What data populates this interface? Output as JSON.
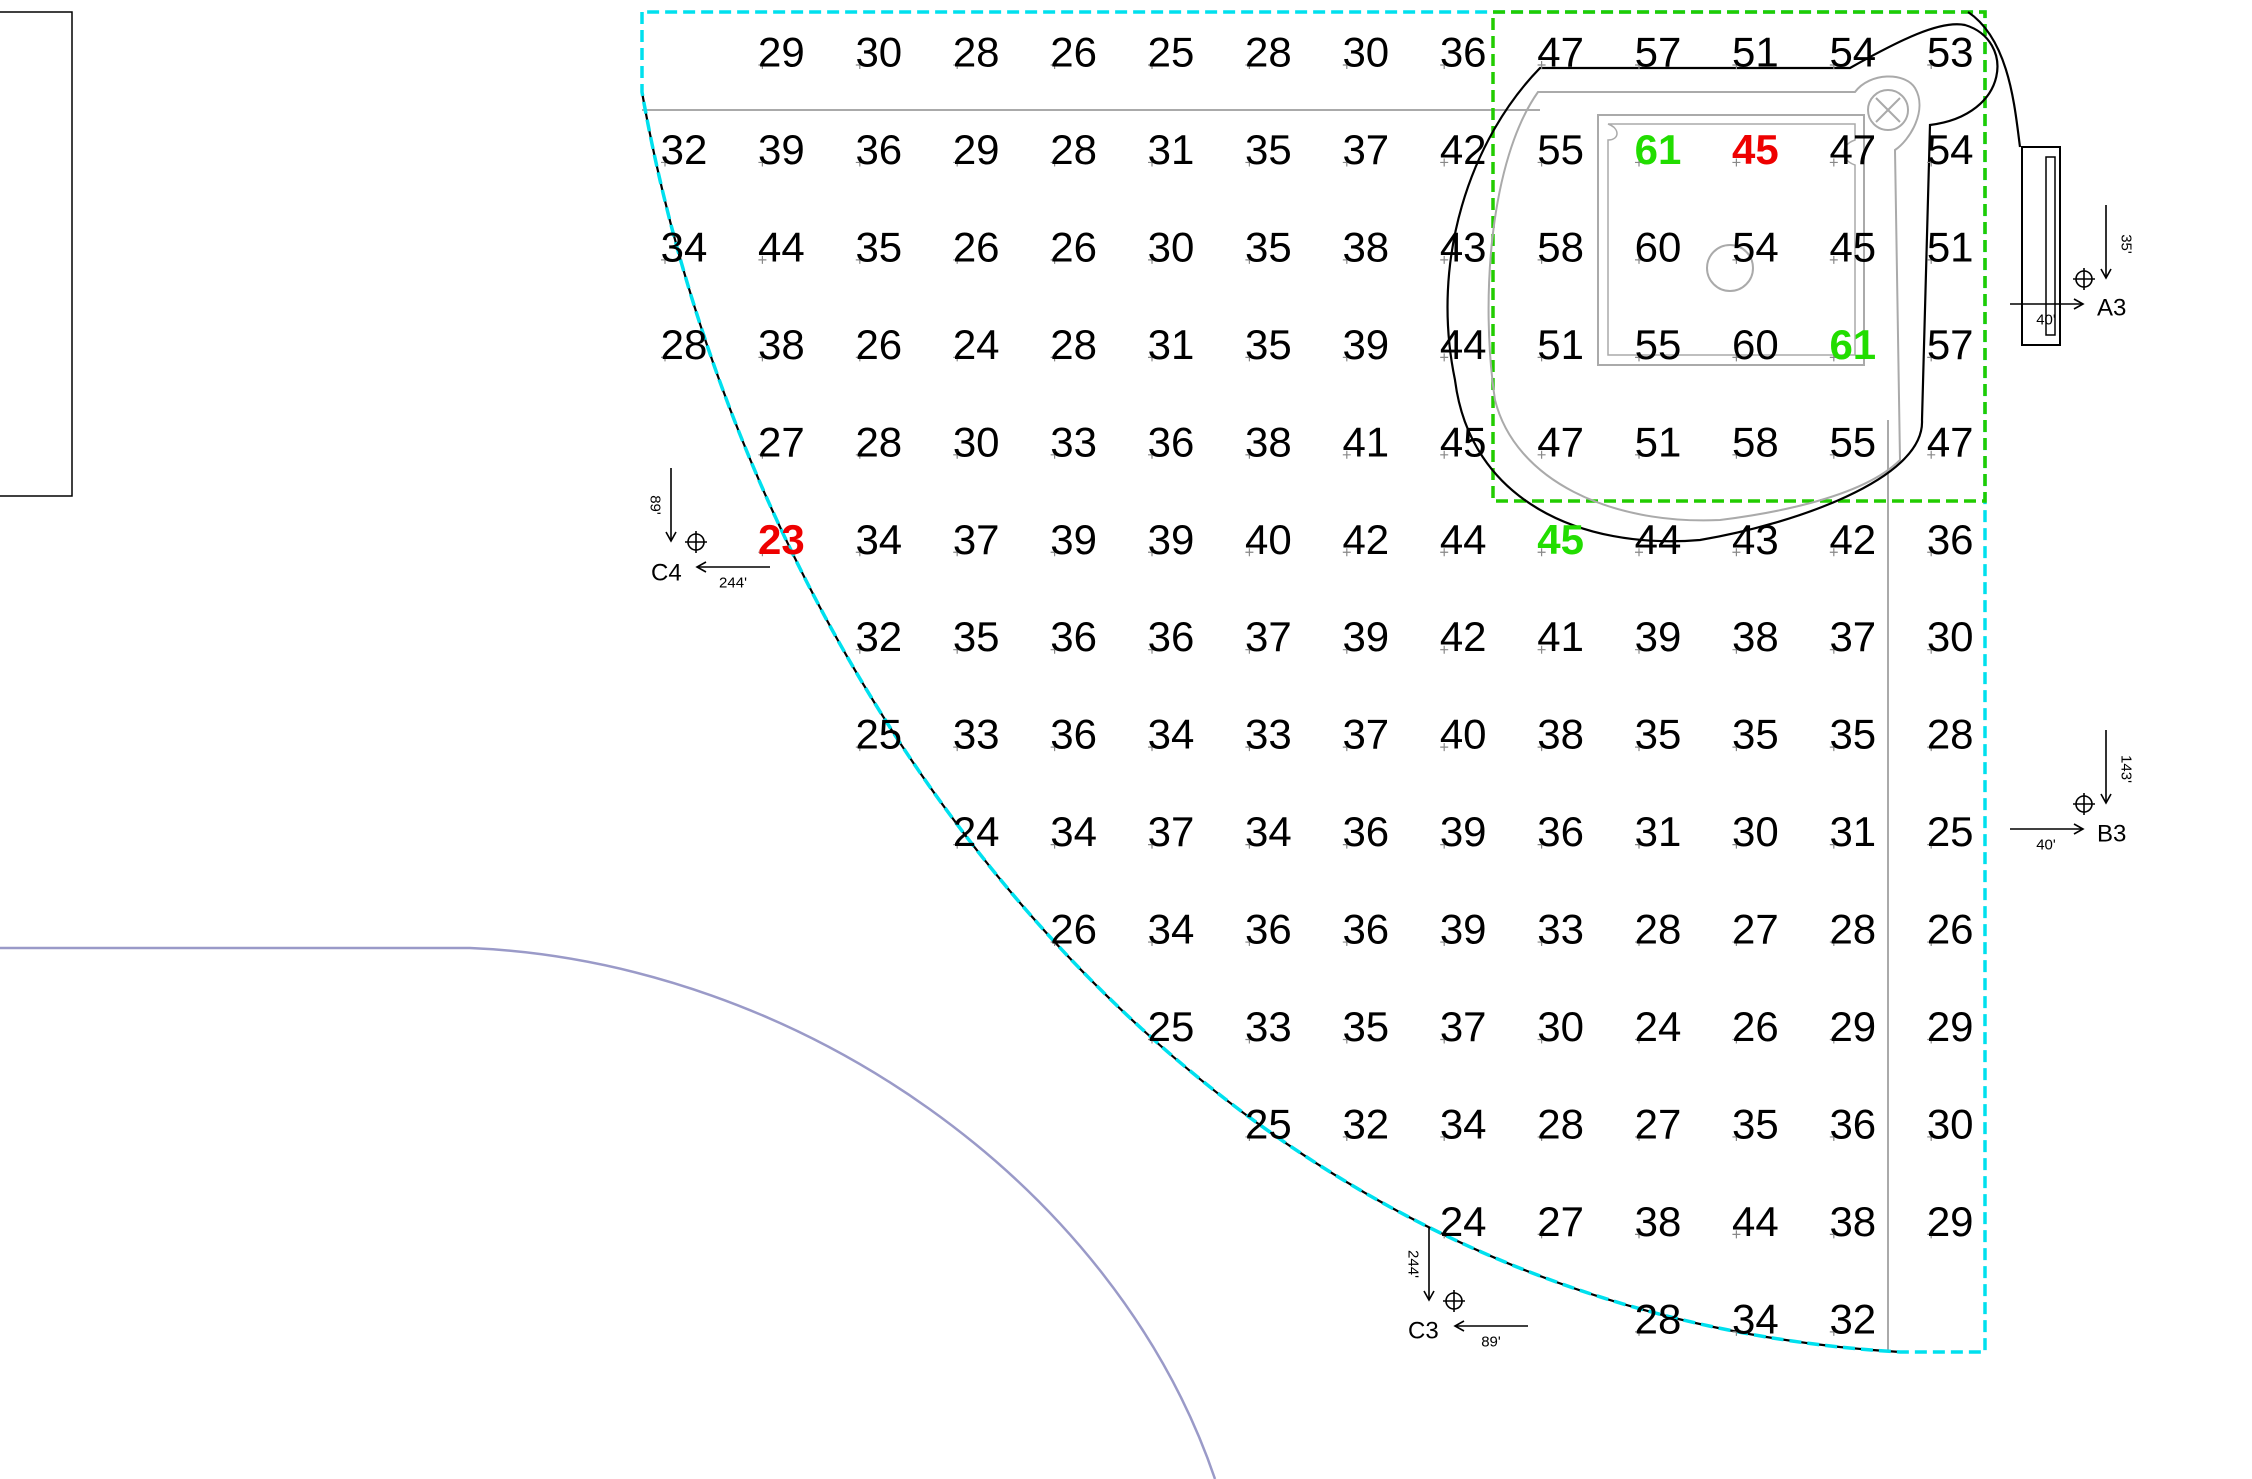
{
  "colors": {
    "text": "#000000",
    "high": "#22dd00",
    "low": "#ee0000",
    "outer_zone": "#00e0ee",
    "inner_zone": "#22cc00",
    "outline": "#000000",
    "detail": "#aaaaaa",
    "arc": "#9a9ac8",
    "tick": "#888888"
  },
  "grid": {
    "rows": [
      [
        null,
        "29",
        "30",
        "28",
        "26",
        "25",
        "28",
        "30",
        "36",
        "47",
        "57",
        "51",
        "54",
        "53"
      ],
      [
        "32",
        "39",
        "36",
        "29",
        "28",
        "31",
        "35",
        "37",
        "42",
        "55",
        "61",
        "45",
        "47",
        "54"
      ],
      [
        "34",
        "44",
        "35",
        "26",
        "26",
        "30",
        "35",
        "38",
        "43",
        "58",
        "60",
        "54",
        "45",
        "51"
      ],
      [
        "28",
        "38",
        "26",
        "24",
        "28",
        "31",
        "35",
        "39",
        "44",
        "51",
        "55",
        "60",
        "61",
        "57"
      ],
      [
        null,
        "27",
        "28",
        "30",
        "33",
        "36",
        "38",
        "41",
        "45",
        "47",
        "51",
        "58",
        "55",
        "47"
      ],
      [
        null,
        "23",
        "34",
        "37",
        "39",
        "39",
        "40",
        "42",
        "44",
        "45",
        "44",
        "43",
        "42",
        "36"
      ],
      [
        null,
        null,
        "32",
        "35",
        "36",
        "36",
        "37",
        "39",
        "42",
        "41",
        "39",
        "38",
        "37",
        "30"
      ],
      [
        null,
        null,
        "25",
        "33",
        "36",
        "34",
        "33",
        "37",
        "40",
        "38",
        "35",
        "35",
        "35",
        "28"
      ],
      [
        null,
        null,
        null,
        "24",
        "34",
        "37",
        "34",
        "36",
        "39",
        "36",
        "31",
        "30",
        "31",
        "25"
      ],
      [
        null,
        null,
        null,
        null,
        "26",
        "34",
        "36",
        "36",
        "39",
        "33",
        "28",
        "27",
        "28",
        "26"
      ],
      [
        null,
        null,
        null,
        null,
        null,
        "25",
        "33",
        "35",
        "37",
        "30",
        "24",
        "26",
        "29",
        "29"
      ],
      [
        null,
        null,
        null,
        null,
        null,
        null,
        "25",
        "32",
        "34",
        "28",
        "27",
        "35",
        "36",
        "30"
      ],
      [
        null,
        null,
        null,
        null,
        null,
        null,
        null,
        null,
        "24",
        "27",
        "38",
        "44",
        "38",
        "29"
      ],
      [
        null,
        null,
        null,
        null,
        null,
        null,
        null,
        null,
        null,
        null,
        "28",
        "34",
        "32",
        null
      ]
    ],
    "highlights": [
      {
        "row": 1,
        "col": 10,
        "kind": "high"
      },
      {
        "row": 3,
        "col": 12,
        "kind": "high"
      },
      {
        "row": 5,
        "col": 9,
        "kind": "high"
      },
      {
        "row": 1,
        "col": 11,
        "kind": "low"
      },
      {
        "row": 5,
        "col": 1,
        "kind": "low"
      }
    ]
  },
  "markers": [
    {
      "id": "A3",
      "label": "A3",
      "dist_a": "35'",
      "dist_b": "40'"
    },
    {
      "id": "B3",
      "label": "B3",
      "dist_a": "143'",
      "dist_b": "40'"
    },
    {
      "id": "C4",
      "label": "C4",
      "dist_a": "89'",
      "dist_b": "244'"
    },
    {
      "id": "C3",
      "label": "C3",
      "dist_a": "244'",
      "dist_b": "89'"
    }
  ]
}
